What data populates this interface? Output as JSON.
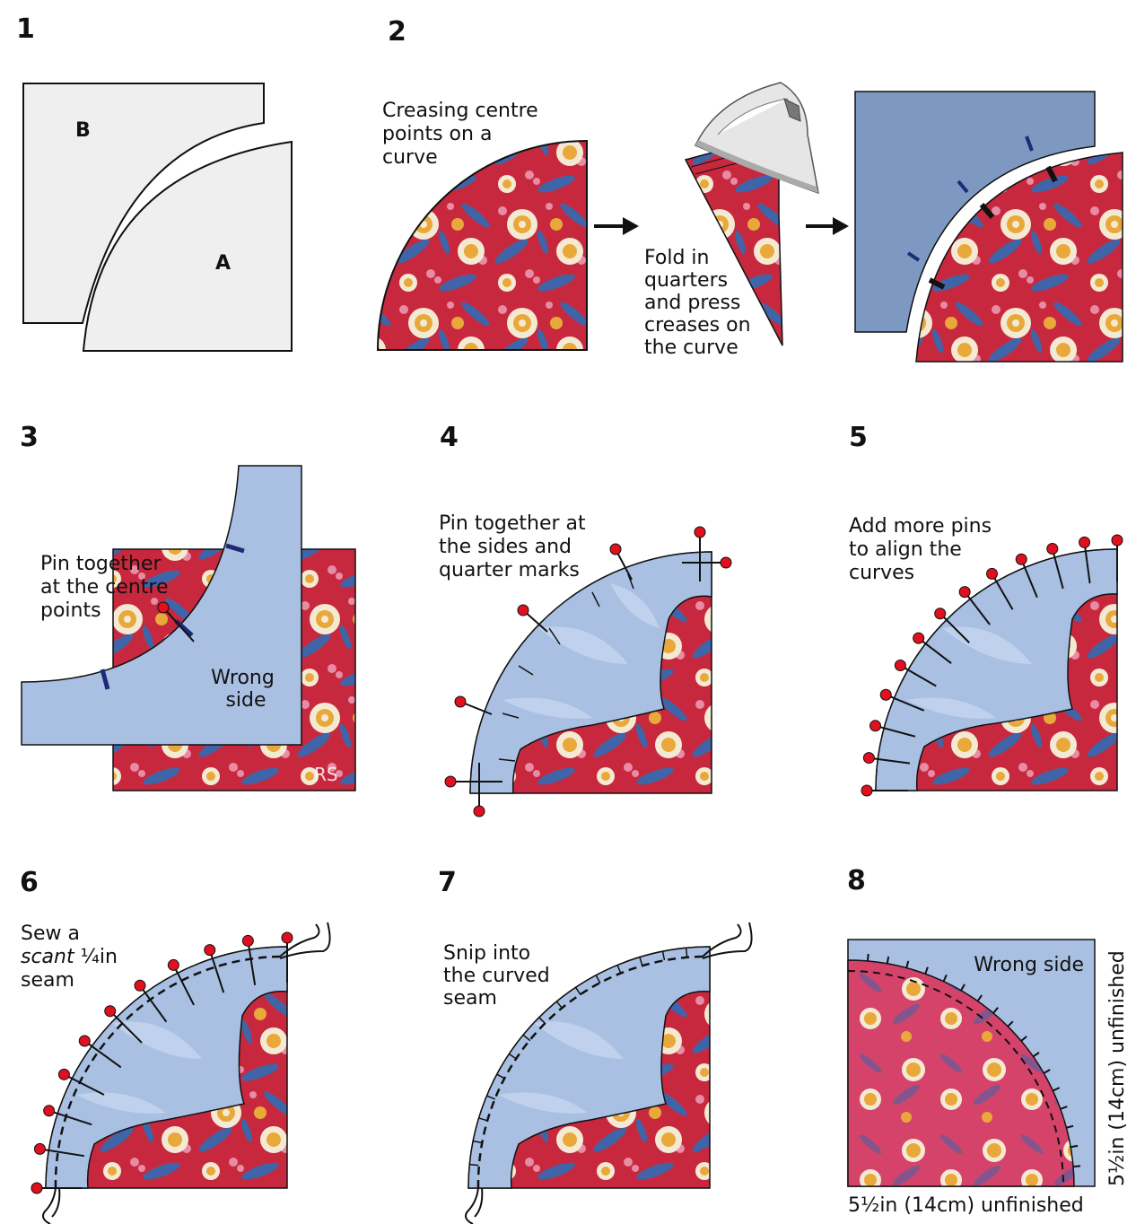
{
  "colors": {
    "paper": "#efefef",
    "blue_fabric": "#7d99c2",
    "light_blue": "#a9c0e3",
    "pale_blue": "#c7d7ef",
    "floral_red": "#c8283d",
    "floral_pink": "#d6436a",
    "flower_cream": "#f4ead4",
    "flower_gold": "#e8a83a",
    "leaf_blue": "#3f64a8",
    "leaf_pink": "#e88ba4",
    "mark_navy": "#1e2a78",
    "pin_red": "#e0101e",
    "outline": "#111111"
  },
  "steps": {
    "s1": {
      "num": "1",
      "label_b": "B",
      "label_a": "A"
    },
    "s2": {
      "num": "2",
      "caption": [
        "Creasing centre",
        "points on a",
        "curve"
      ],
      "fold_caption": [
        "Fold in",
        "quarters",
        "and press",
        "creases on",
        "the curve"
      ],
      "iron_icon": "iron-icon",
      "arrow_icon": "right-arrow-icon"
    },
    "s3": {
      "num": "3",
      "caption": [
        "Pin together",
        "at the centre",
        "points"
      ],
      "wrong_side": [
        "Wrong",
        "side"
      ],
      "rs": "RS"
    },
    "s4": {
      "num": "4",
      "caption": [
        "Pin together at",
        "the sides and",
        "quarter marks"
      ]
    },
    "s5": {
      "num": "5",
      "caption": [
        "Add more pins",
        "to align the",
        "curves"
      ]
    },
    "s6": {
      "num": "6",
      "caption_1": "Sew a",
      "caption_2_em": "scant",
      "caption_2_rest": " ¼in",
      "caption_3": "seam"
    },
    "s7": {
      "num": "7",
      "caption": [
        "Snip into",
        "the curved",
        "seam"
      ]
    },
    "s8": {
      "num": "8",
      "wrong_side": "Wrong side",
      "bottom_dim": "5½in (14cm) unfinished",
      "side_dim": "5½in (14cm) unfinished"
    }
  }
}
